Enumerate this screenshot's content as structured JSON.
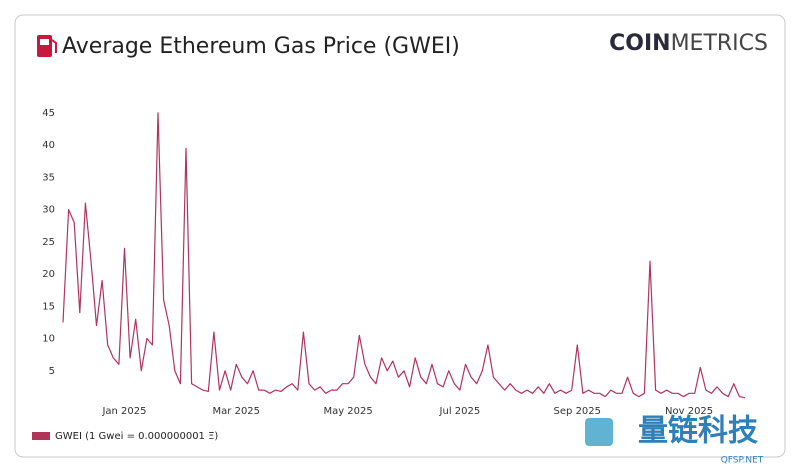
{
  "chart_data": {
    "type": "line",
    "title": "Average Ethereum Gas Price (GWEI)",
    "logo": {
      "bold": "COIN",
      "light": "METRICS"
    },
    "watermark": {
      "text": "量链科技",
      "url": "QFSP.NET"
    },
    "categories": [
      null,
      null,
      null,
      null,
      null,
      null,
      null,
      null,
      null,
      null,
      null,
      "Jan 2025",
      null,
      null,
      null,
      null,
      null,
      null,
      null,
      null,
      null,
      null,
      null,
      null,
      null,
      null,
      null,
      null,
      null,
      null,
      null,
      "Mar 2025",
      null,
      null,
      null,
      null,
      null,
      null,
      null,
      null,
      null,
      null,
      null,
      null,
      null,
      null,
      null,
      null,
      null,
      null,
      null,
      "May 2025",
      null,
      null,
      null,
      null,
      null,
      null,
      null,
      null,
      null,
      null,
      null,
      null,
      null,
      null,
      null,
      null,
      null,
      null,
      null,
      "Jul 2025",
      null,
      null,
      null,
      null,
      null,
      null,
      null,
      null,
      null,
      null,
      null,
      null,
      null,
      null,
      null,
      null,
      null,
      null,
      null,
      null,
      "Sep 2025",
      null,
      null,
      null,
      null,
      null,
      null,
      null,
      null,
      null,
      null,
      null,
      null,
      null,
      null,
      null,
      null,
      null,
      null,
      null,
      "Nov 2025",
      null,
      null,
      null,
      null,
      null,
      null,
      null,
      null,
      null,
      null
    ],
    "series": [
      {
        "name": "GWEI (1 Gwei = 0.000000001 Ξ)",
        "color": "#b0345c",
        "values": [
          12.5,
          30,
          28,
          14,
          31,
          22,
          12,
          19,
          9,
          7,
          6,
          24,
          7,
          13,
          5,
          10,
          9,
          45,
          16,
          12,
          5,
          3,
          39.5,
          3,
          2.5,
          2,
          1.8,
          11,
          2,
          5,
          2,
          6,
          4,
          3,
          5,
          2,
          2,
          1.5,
          2,
          1.8,
          2.5,
          3,
          2,
          11,
          3,
          2,
          2.5,
          1.5,
          2,
          2,
          3,
          3,
          4,
          10.5,
          6,
          4,
          3,
          7,
          5,
          6.5,
          4,
          5,
          2.5,
          7,
          4,
          3,
          6,
          3,
          2.5,
          5,
          3,
          2,
          6,
          4,
          3,
          5,
          9,
          4,
          3,
          2,
          3,
          2,
          1.5,
          2,
          1.5,
          2.5,
          1.5,
          3,
          1.5,
          2,
          1.5,
          2,
          9,
          1.5,
          2,
          1.5,
          1.5,
          1,
          2,
          1.5,
          1.5,
          4,
          1.5,
          1,
          1.5,
          22,
          2,
          1.5,
          2,
          1.5,
          1.5,
          1,
          1.5,
          1.5,
          5.5,
          2,
          1.5,
          2.5,
          1.5,
          1,
          3,
          1,
          0.8
        ]
      }
    ],
    "ylim": [
      0,
      47
    ],
    "yticks": [
      5,
      10,
      15,
      20,
      25,
      30,
      35,
      40,
      45
    ],
    "grid": false
  }
}
